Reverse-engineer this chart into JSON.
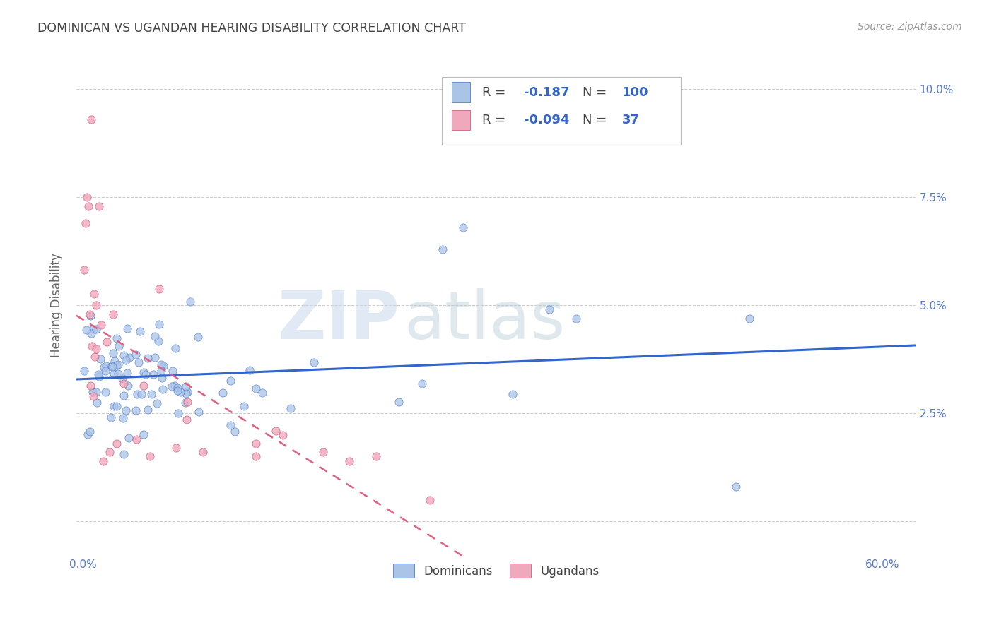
{
  "title": "DOMINICAN VS UGANDAN HEARING DISABILITY CORRELATION CHART",
  "source": "Source: ZipAtlas.com",
  "ylabel": "Hearing Disability",
  "dominican_color": "#aac4e8",
  "dominican_edge_color": "#5580cc",
  "ugandan_color": "#f0a8bc",
  "ugandan_edge_color": "#cc6080",
  "dominican_line_color": "#3366cc",
  "ugandan_line_color": "#e06080",
  "legend_r1": "-0.187",
  "legend_n1": "100",
  "legend_r2": "-0.094",
  "legend_n2": "37",
  "watermark": "ZIPatlas",
  "watermark_zip_color": "#c8d8e8",
  "watermark_atlas_color": "#c8d4e0",
  "title_color": "#444444",
  "source_color": "#999999",
  "axis_label_color": "#5577cc",
  "ylabel_color": "#666666"
}
